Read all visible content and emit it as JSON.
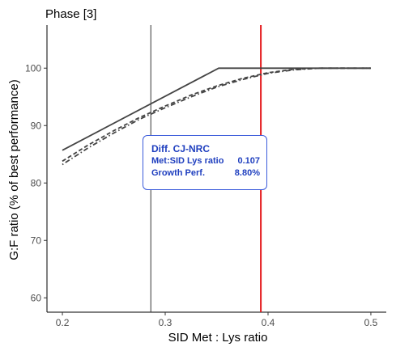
{
  "chart_data": {
    "type": "line",
    "title": "Phase [3]",
    "xlabel": "SID Met : Lys ratio",
    "ylabel": "G:F ratio (% of best performance)",
    "xlim": [
      0.185,
      0.515
    ],
    "ylim": [
      57.5,
      107.5
    ],
    "x_ticks": [
      0.2,
      0.3,
      0.4,
      0.5
    ],
    "x_tick_labels": [
      "0.2",
      "0.3",
      "0.4",
      "0.5"
    ],
    "y_ticks": [
      60,
      70,
      80,
      90,
      100
    ],
    "y_tick_labels": [
      "60",
      "70",
      "80",
      "90",
      "100"
    ],
    "grid": false,
    "legend": "none",
    "series": [
      {
        "style": "solid",
        "color": "#444444",
        "x": [
          0.2,
          0.352,
          0.5
        ],
        "y": [
          85.7,
          100,
          100
        ]
      },
      {
        "style": "dashed",
        "color": "#444444",
        "x": [
          0.2,
          0.225,
          0.25,
          0.275,
          0.3,
          0.325,
          0.35,
          0.375,
          0.4,
          0.425,
          0.45,
          0.475,
          0.5
        ],
        "y": [
          83.8,
          86.6,
          89.1,
          91.4,
          93.4,
          95.3,
          96.9,
          98.2,
          99.2,
          99.8,
          100.0,
          100.0,
          100.0
        ]
      },
      {
        "style": "dotdash",
        "color": "#444444",
        "x": [
          0.2,
          0.225,
          0.25,
          0.275,
          0.3,
          0.325,
          0.35,
          0.375,
          0.4,
          0.425,
          0.45,
          0.475,
          0.5
        ],
        "y": [
          83.2,
          86.1,
          88.7,
          91.1,
          93.1,
          95.0,
          96.7,
          98.0,
          99.1,
          99.7,
          100.0,
          100.0,
          100.0
        ]
      }
    ],
    "vlines": [
      {
        "x": 0.286,
        "color": "#333333"
      },
      {
        "x": 0.393,
        "color": "#e41a1c"
      }
    ],
    "annotation": {
      "title": "Diff. CJ-NRC",
      "rows": [
        {
          "label": "Met:SID Lys ratio",
          "value": "0.107"
        },
        {
          "label": "Growth Perf.",
          "value": "8.80%"
        }
      ]
    }
  }
}
